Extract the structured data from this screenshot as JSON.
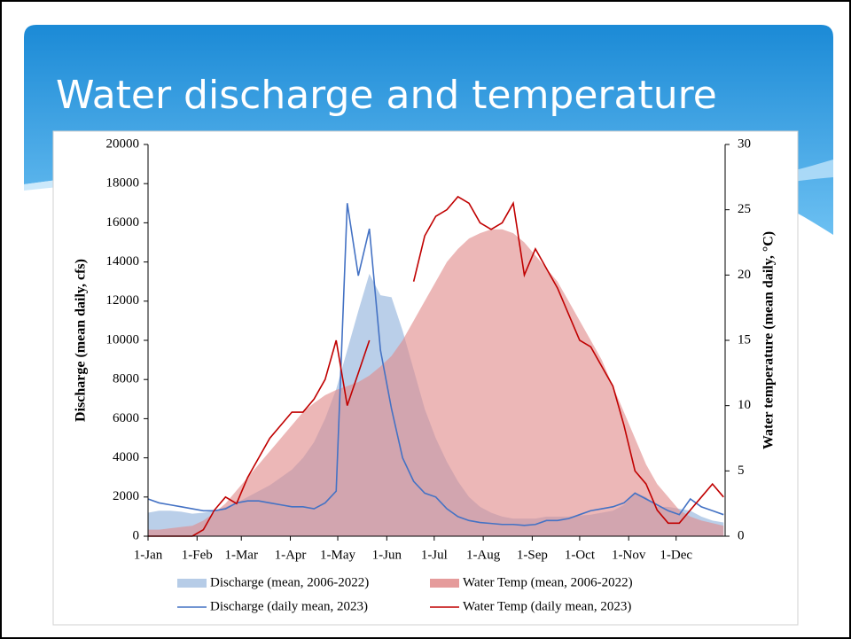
{
  "slide": {
    "title": "Water discharge and temperature"
  },
  "chart_data": {
    "type": "area-line",
    "y_label": "Discharge (mean daily, cfs)",
    "y2_label": "Water temperature (mean daily, °C)",
    "x": [
      0,
      7,
      14,
      21,
      28,
      35,
      42,
      49,
      56,
      63,
      70,
      77,
      84,
      91,
      98,
      105,
      112,
      119,
      126,
      133,
      140,
      147,
      154,
      161,
      168,
      175,
      182,
      189,
      196,
      203,
      210,
      217,
      224,
      231,
      238,
      245,
      252,
      259,
      266,
      273,
      280,
      287,
      294,
      301,
      308,
      315,
      322,
      329,
      336,
      343,
      350,
      357,
      364
    ],
    "xlim": [
      0,
      365
    ],
    "xticks": [
      {
        "value": 0,
        "label": "1-Jan"
      },
      {
        "value": 31,
        "label": "1-Feb"
      },
      {
        "value": 59,
        "label": "1-Mar"
      },
      {
        "value": 90,
        "label": "1-Apr"
      },
      {
        "value": 120,
        "label": "1-May"
      },
      {
        "value": 151,
        "label": "1-Jun"
      },
      {
        "value": 181,
        "label": "1-Jul"
      },
      {
        "value": 212,
        "label": "1-Aug"
      },
      {
        "value": 243,
        "label": "1-Sep"
      },
      {
        "value": 273,
        "label": "1-Oct"
      },
      {
        "value": 304,
        "label": "1-Nov"
      },
      {
        "value": 334,
        "label": "1-Dec"
      }
    ],
    "ylim": [
      0,
      20000
    ],
    "yticks": [
      0,
      2000,
      4000,
      6000,
      8000,
      10000,
      12000,
      14000,
      16000,
      18000,
      20000
    ],
    "y2lim": [
      0,
      30
    ],
    "y2ticks": [
      0,
      5,
      10,
      15,
      20,
      25,
      30
    ],
    "series": [
      {
        "name": "Discharge (mean, 2006-2022)",
        "type": "area",
        "color": "#a9c3e3",
        "values": [
          1200,
          1300,
          1300,
          1250,
          1150,
          1200,
          1300,
          1500,
          1700,
          2000,
          2300,
          2600,
          3000,
          3400,
          4000,
          4800,
          6000,
          7500,
          9500,
          11500,
          13400,
          12300,
          12200,
          10500,
          8500,
          6500,
          5000,
          3800,
          2800,
          2000,
          1500,
          1200,
          1000,
          900,
          900,
          900,
          1000,
          1000,
          1000,
          1050,
          1100,
          1200,
          1300,
          1600,
          2200,
          2000,
          1500,
          1500,
          1400,
          1300,
          1000,
          800,
          700
        ]
      },
      {
        "name": "Water Temp (mean, 2006-2022)",
        "type": "area",
        "color": "#e08a8a",
        "axis": "y2",
        "values": [
          0.5,
          0.5,
          0.6,
          0.7,
          0.8,
          1.2,
          1.8,
          2.5,
          3.5,
          4.5,
          5.5,
          6.5,
          7.5,
          8.5,
          9.5,
          10.2,
          10.8,
          11.2,
          11.5,
          11.8,
          12.3,
          13,
          13.8,
          15,
          16.5,
          18,
          19.5,
          21,
          22,
          22.8,
          23.2,
          23.5,
          23.5,
          23.2,
          22.5,
          21.5,
          20.5,
          19.5,
          18,
          16.5,
          15,
          13.5,
          11.5,
          9.5,
          7.5,
          5.5,
          4,
          3,
          2,
          1.5,
          1.2,
          1,
          0.8
        ]
      },
      {
        "name": "Discharge (daily mean, 2023)",
        "type": "line",
        "color": "#4472c4",
        "values": [
          1900,
          1700,
          1600,
          1500,
          1400,
          1300,
          1300,
          1400,
          1700,
          1800,
          1800,
          1700,
          1600,
          1500,
          1500,
          1400,
          1700,
          2300,
          17000,
          13300,
          15700,
          9500,
          6500,
          4000,
          2800,
          2200,
          2000,
          1400,
          1000,
          800,
          700,
          650,
          600,
          600,
          550,
          600,
          800,
          800,
          900,
          1100,
          1300,
          1400,
          1500,
          1700,
          2200,
          1900,
          1600,
          1300,
          1100,
          1900,
          1500,
          1300,
          1100
        ]
      },
      {
        "name": "Water Temp (daily mean, 2023)",
        "type": "line",
        "color": "#c00000",
        "axis": "y2",
        "values": [
          0,
          0,
          0,
          0,
          0,
          0.5,
          2,
          3,
          2.5,
          4.5,
          6,
          7.5,
          8.5,
          9.5,
          9.5,
          10.5,
          12,
          15,
          10,
          12.5,
          15,
          null,
          null,
          null,
          19.5,
          23,
          24.5,
          25,
          26,
          25.5,
          24,
          23.5,
          24,
          25.5,
          20,
          22,
          20.5,
          19,
          17,
          15,
          14.5,
          13,
          11.5,
          8.5,
          5,
          4,
          2,
          1,
          1,
          2,
          3,
          4,
          3
        ]
      }
    ]
  }
}
